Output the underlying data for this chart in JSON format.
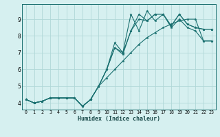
{
  "title": "",
  "xlabel": "Humidex (Indice chaleur)",
  "ylabel": "",
  "bg_color": "#d6f0f0",
  "line_color": "#1a7070",
  "grid_color": "#b0d8d8",
  "xlim": [
    -0.5,
    23.5
  ],
  "ylim": [
    3.6,
    9.9
  ],
  "xticks": [
    0,
    1,
    2,
    3,
    4,
    5,
    6,
    7,
    8,
    9,
    10,
    11,
    12,
    13,
    14,
    15,
    16,
    17,
    18,
    19,
    20,
    21,
    22,
    23
  ],
  "yticks": [
    4,
    5,
    6,
    7,
    8,
    9
  ],
  "series": [
    [
      4.2,
      4.0,
      4.1,
      4.3,
      4.3,
      4.3,
      4.3,
      3.8,
      4.2,
      5.0,
      6.0,
      7.6,
      7.0,
      9.3,
      8.3,
      9.5,
      8.9,
      9.3,
      8.6,
      9.3,
      8.7,
      8.5,
      8.4,
      8.4
    ],
    [
      4.2,
      4.0,
      4.1,
      4.3,
      4.3,
      4.3,
      4.3,
      3.8,
      4.2,
      5.0,
      6.0,
      7.3,
      6.9,
      8.3,
      9.3,
      8.9,
      9.3,
      9.3,
      8.6,
      9.3,
      8.7,
      8.5,
      8.4,
      8.4
    ],
    [
      4.2,
      4.0,
      4.1,
      4.3,
      4.3,
      4.3,
      4.3,
      3.8,
      4.2,
      5.0,
      6.0,
      7.3,
      7.0,
      8.3,
      9.0,
      8.9,
      9.3,
      9.3,
      8.5,
      9.0,
      8.5,
      8.3,
      7.7,
      7.7
    ],
    [
      4.2,
      4.0,
      4.1,
      4.3,
      4.3,
      4.3,
      4.3,
      3.8,
      4.2,
      5.0,
      5.5,
      6.0,
      6.5,
      7.0,
      7.5,
      7.9,
      8.2,
      8.5,
      8.7,
      8.9,
      9.0,
      9.0,
      7.7,
      7.7
    ]
  ]
}
